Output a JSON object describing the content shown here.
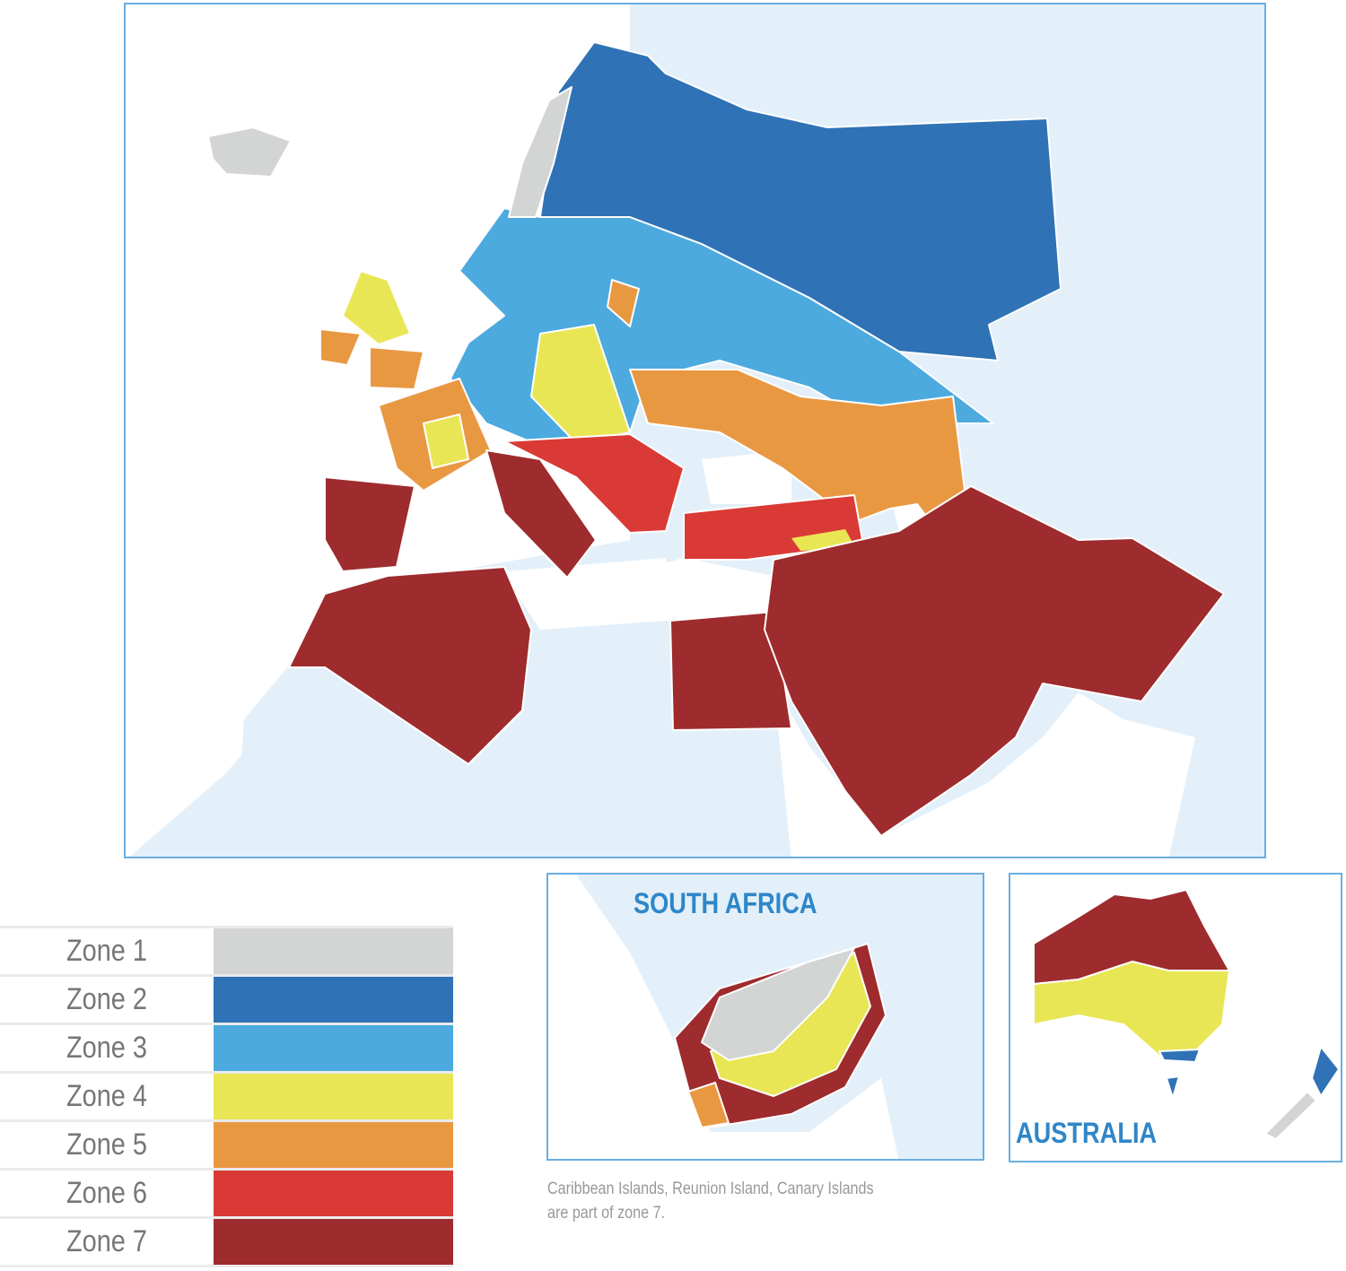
{
  "legend": [
    {
      "label": "Zone 1",
      "color": "#d3d4d4"
    },
    {
      "label": "Zone 2",
      "color": "#2f72b5"
    },
    {
      "label": "Zone 3",
      "color": "#4caadf"
    },
    {
      "label": "Zone 4",
      "color": "#e9e655"
    },
    {
      "label": "Zone 5",
      "color": "#e99842"
    },
    {
      "label": "Zone 6",
      "color": "#da3a35"
    },
    {
      "label": "Zone 7",
      "color": "#9e2b2d"
    }
  ],
  "insets": {
    "south_africa": "SOUTH AFRICA",
    "australia": "AUSTRALIA"
  },
  "note": {
    "line1": "Caribbean Islands, Reunion Island, Canary Islands",
    "line2": "are part of zone 7."
  },
  "colors": {
    "land": "#e3f0fa",
    "sea": "#ffffff",
    "frame": "#6aaee0"
  }
}
